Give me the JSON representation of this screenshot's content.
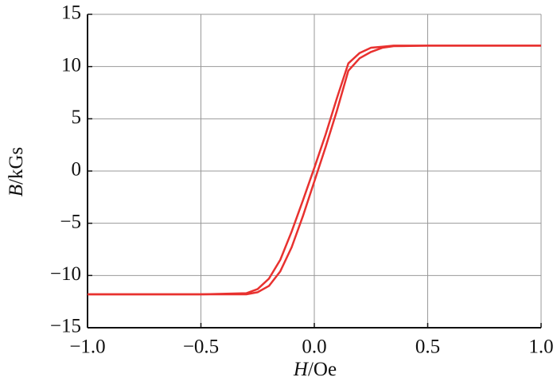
{
  "chart_data": {
    "type": "line",
    "xlabel_symbol": "H",
    "xlabel_unit": "/Oe",
    "ylabel_symbol": "B",
    "ylabel_unit": "/kGs",
    "x": [
      -1.0,
      -0.5,
      -0.3,
      -0.25,
      -0.2,
      -0.15,
      -0.1,
      -0.05,
      0,
      0.05,
      0.1,
      0.15,
      0.2,
      0.25,
      0.3,
      0.35,
      0.5,
      1.0
    ],
    "series": [
      {
        "color": "#e8312f",
        "values": [
          -11.8,
          -11.8,
          -11.7,
          -11.3,
          -10.3,
          -8.5,
          -5.8,
          -2.8,
          0.3,
          3.5,
          7.0,
          10.3,
          11.3,
          11.8,
          11.9,
          12.0,
          12.0,
          12.0
        ]
      },
      {
        "color": "#e8312f",
        "values": [
          -11.8,
          -11.8,
          -11.8,
          -11.6,
          -11.0,
          -9.6,
          -7.3,
          -4.3,
          -1.0,
          2.3,
          5.8,
          9.6,
          10.8,
          11.4,
          11.8,
          11.95,
          12.0,
          12.0
        ]
      }
    ],
    "xlim": [
      -1.0,
      1.0
    ],
    "xticks": [
      {
        "value": -1.0,
        "label": "−1.0"
      },
      {
        "value": -0.5,
        "label": "−0.5"
      },
      {
        "value": 0,
        "label": "0.0"
      },
      {
        "value": 0.5,
        "label": "0.5"
      },
      {
        "value": 1.0,
        "label": "1.0"
      }
    ],
    "ylim": [
      -15,
      15
    ],
    "yticks": [
      {
        "value": -15,
        "label": "−15"
      },
      {
        "value": -10,
        "label": "−10"
      },
      {
        "value": -5,
        "label": "−5"
      },
      0,
      5,
      10,
      15
    ],
    "grid": true
  }
}
